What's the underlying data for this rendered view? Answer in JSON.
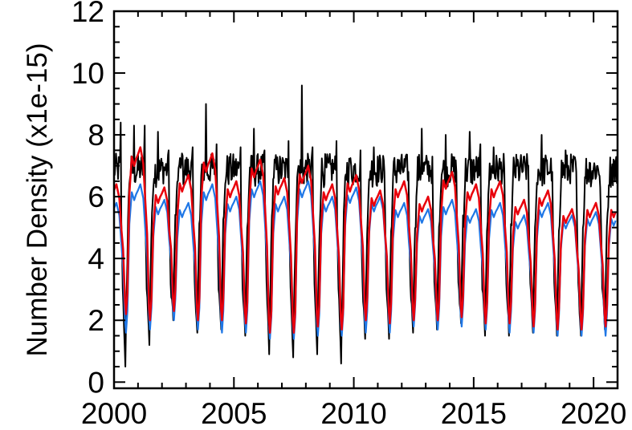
{
  "chart_data": {
    "type": "line",
    "title": "",
    "xlabel": "",
    "ylabel": "Number Density (x1e-15)",
    "xlim": [
      2000,
      2021
    ],
    "ylim": [
      -0.2,
      12
    ],
    "xticks": [
      2000,
      2005,
      2010,
      2015,
      2020
    ],
    "yticks": [
      0,
      2,
      4,
      6,
      8,
      10,
      12
    ],
    "grid": false,
    "legend": "none",
    "series": [
      {
        "color": "#000000",
        "peaks": [
          [
            2000.35,
            8.4
          ],
          [
            2000.85,
            8.3
          ],
          [
            2001.3,
            8.3
          ],
          [
            2001.85,
            8.1
          ],
          [
            2002.3,
            7.5
          ],
          [
            2002.85,
            7.4
          ],
          [
            2003.3,
            7.6
          ],
          [
            2003.85,
            9.0
          ],
          [
            2004.3,
            7.7
          ],
          [
            2004.85,
            7.1
          ],
          [
            2005.3,
            7.6
          ],
          [
            2005.85,
            8.2
          ],
          [
            2006.3,
            7.5
          ],
          [
            2006.85,
            7.0
          ],
          [
            2007.3,
            7.8
          ],
          [
            2007.85,
            9.6
          ],
          [
            2008.3,
            7.6
          ],
          [
            2008.85,
            7.0
          ],
          [
            2009.3,
            7.8
          ],
          [
            2009.85,
            7.2
          ],
          [
            2010.3,
            7.5
          ],
          [
            2010.85,
            7.6
          ],
          [
            2011.3,
            6.8
          ],
          [
            2011.85,
            7.2
          ],
          [
            2012.3,
            6.8
          ],
          [
            2012.85,
            8.2
          ],
          [
            2013.3,
            7.3
          ],
          [
            2013.85,
            8.0
          ],
          [
            2014.3,
            6.8
          ],
          [
            2014.85,
            8.1
          ],
          [
            2015.3,
            7.7
          ],
          [
            2015.85,
            7.6
          ],
          [
            2016.3,
            6.9
          ],
          [
            2016.85,
            7.2
          ],
          [
            2017.3,
            7.0
          ],
          [
            2017.85,
            8.0
          ],
          [
            2018.3,
            6.8
          ],
          [
            2018.85,
            7.5
          ],
          [
            2019.3,
            6.8
          ],
          [
            2019.85,
            7.1
          ],
          [
            2020.3,
            6.3
          ],
          [
            2020.85,
            7.2
          ]
        ],
        "minima": [
          [
            2000.52,
            0.5
          ],
          [
            2001.52,
            1.2
          ],
          [
            2002.52,
            2.0
          ],
          [
            2003.52,
            1.6
          ],
          [
            2004.52,
            1.7
          ],
          [
            2005.52,
            1.5
          ],
          [
            2006.52,
            0.9
          ],
          [
            2007.52,
            0.8
          ],
          [
            2008.52,
            0.9
          ],
          [
            2009.52,
            0.6
          ],
          [
            2010.52,
            1.4
          ],
          [
            2011.52,
            1.4
          ],
          [
            2012.52,
            1.6
          ],
          [
            2013.52,
            1.7
          ],
          [
            2014.52,
            1.9
          ],
          [
            2015.52,
            1.5
          ],
          [
            2016.52,
            1.5
          ],
          [
            2017.52,
            1.6
          ],
          [
            2018.52,
            1.5
          ],
          [
            2019.52,
            1.5
          ],
          [
            2020.52,
            1.7
          ]
        ]
      },
      {
        "color": "#1f77e6",
        "winter_level": [
          5.8,
          6.4,
          5.9,
          5.8,
          6.4,
          6.0,
          6.5,
          6.0,
          6.5,
          6.0,
          6.3,
          6.0,
          5.8,
          5.6,
          5.9,
          5.6,
          5.8,
          5.4,
          5.8,
          5.4,
          5.5
        ],
        "minima": [
          1.6,
          1.7,
          2.0,
          1.7,
          1.6,
          1.6,
          1.4,
          1.4,
          1.5,
          1.5,
          1.6,
          1.6,
          1.8,
          1.7,
          1.8,
          1.7,
          1.6,
          1.6,
          1.5,
          1.5,
          1.5
        ]
      },
      {
        "color": "#e8000b",
        "winter_level": [
          6.4,
          7.6,
          6.3,
          6.7,
          7.4,
          6.5,
          7.2,
          6.6,
          7.0,
          6.4,
          6.7,
          6.2,
          6.5,
          6.0,
          6.8,
          6.4,
          6.5,
          5.9,
          6.2,
          5.6,
          5.8
        ],
        "minima": [
          2.2,
          2.0,
          2.3,
          2.0,
          2.0,
          1.9,
          1.6,
          1.6,
          1.8,
          1.7,
          2.0,
          1.9,
          2.0,
          2.0,
          2.1,
          1.9,
          1.9,
          1.8,
          1.7,
          1.7,
          1.8
        ]
      }
    ]
  }
}
